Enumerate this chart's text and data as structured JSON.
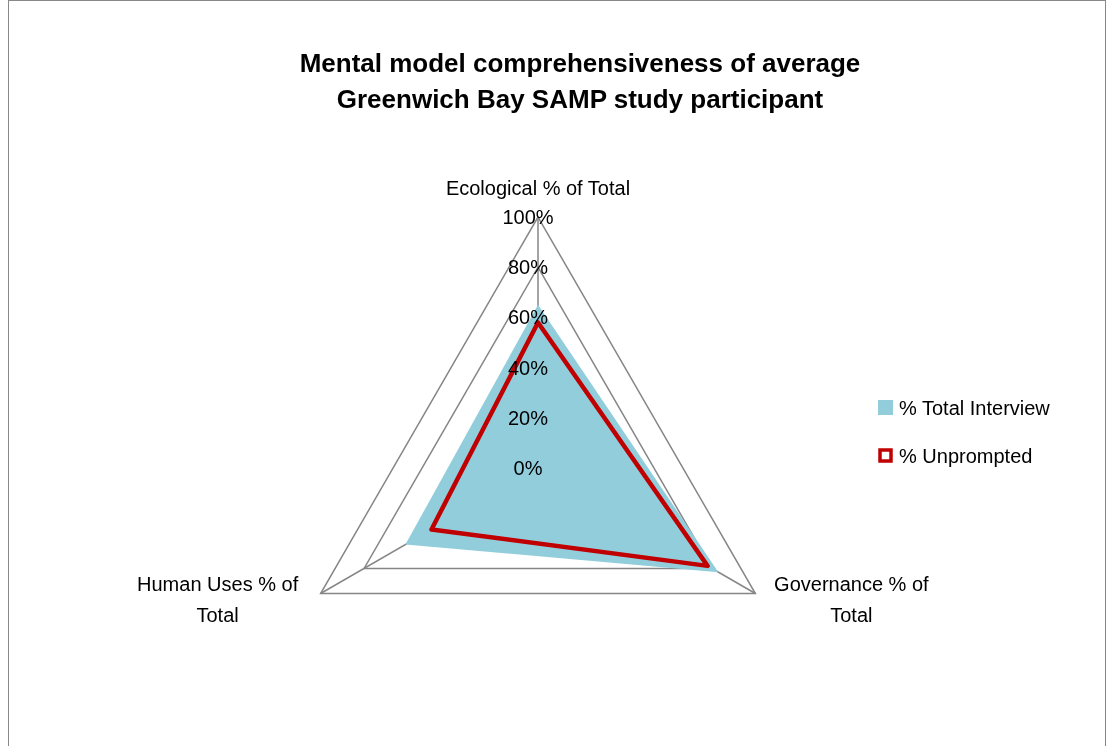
{
  "chart_data": {
    "type": "radar",
    "title": "Mental model comprehensiveness of average Greenwich Bay SAMP study participant",
    "categories": [
      "Ecological % of Total",
      "Governance % of Total",
      "Human Uses % of Total"
    ],
    "series": [
      {
        "name": "% Total Interview",
        "color": "#92cddc",
        "type": "area",
        "values": [
          65,
          83,
          61
        ]
      },
      {
        "name": "% Unprompted",
        "color": "#c00000",
        "values": [
          58,
          78,
          49
        ]
      }
    ],
    "ylim": [
      0,
      100
    ],
    "yticks": [
      {
        "value": 0,
        "label": "0%"
      },
      {
        "value": 20,
        "label": "20%"
      },
      {
        "value": 40,
        "label": "40%"
      },
      {
        "value": 60,
        "label": "60%"
      },
      {
        "value": 80,
        "label": "80%"
      },
      {
        "value": 100,
        "label": "100%"
      }
    ],
    "grid": true,
    "legend": "right"
  }
}
